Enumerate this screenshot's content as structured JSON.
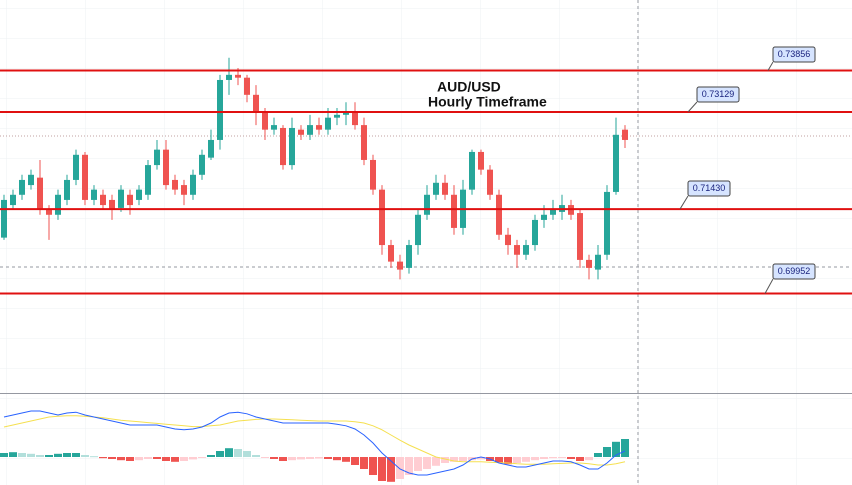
{
  "chart_data": {
    "type": "candlestick",
    "title": "AUD/USD",
    "subtitle": "Hourly Timeframe",
    "ylim": [
      0.6821,
      0.7509
    ],
    "up_color": "#26a69a",
    "down_color": "#ef5350",
    "level_color": "#e01010",
    "levels": [
      0.73856,
      0.73129,
      {
        "value": 0.7143,
        "label": "0.71430"
      },
      0.69952
    ],
    "open": [
      0.7093,
      0.715,
      0.7168,
      0.7185,
      0.7198,
      0.7142,
      0.7133,
      0.7159,
      0.7194,
      0.7238,
      0.7159,
      0.7168,
      0.7159,
      0.7145,
      0.7168,
      0.7159,
      0.7168,
      0.722,
      0.7247,
      0.7194,
      0.7185,
      0.7168,
      0.7203,
      0.7233,
      0.7264,
      0.7369,
      0.7378,
      0.7373,
      0.7343,
      0.7313,
      0.7282,
      0.7285,
      0.722,
      0.7282,
      0.7273,
      0.729,
      0.7282,
      0.7303,
      0.7308,
      0.7313,
      0.729,
      0.7229,
      0.7177,
      0.708,
      0.7051,
      0.704,
      0.708,
      0.7133,
      0.7168,
      0.7189,
      0.7168,
      0.711,
      0.7177,
      0.7243,
      0.7212,
      0.7168,
      0.7098,
      0.708,
      0.7063,
      0.708,
      0.7124,
      0.7133,
      0.7138,
      0.715,
      0.7136,
      0.7054,
      0.7037,
      0.7063,
      0.7173,
      0.7282
    ],
    "high": [
      0.7168,
      0.7177,
      0.7203,
      0.7212,
      0.7229,
      0.715,
      0.7177,
      0.7203,
      0.7247,
      0.7243,
      0.7185,
      0.7177,
      0.7168,
      0.7185,
      0.7177,
      0.7185,
      0.7229,
      0.7264,
      0.7264,
      0.7203,
      0.7194,
      0.7212,
      0.7247,
      0.7282,
      0.7378,
      0.7408,
      0.739,
      0.7378,
      0.736,
      0.732,
      0.7303,
      0.729,
      0.7303,
      0.729,
      0.7308,
      0.7303,
      0.732,
      0.732,
      0.733,
      0.733,
      0.7303,
      0.7238,
      0.7185,
      0.7089,
      0.7063,
      0.7089,
      0.7142,
      0.7185,
      0.7203,
      0.7203,
      0.7185,
      0.7194,
      0.7247,
      0.7247,
      0.722,
      0.7177,
      0.711,
      0.7089,
      0.7089,
      0.7133,
      0.715,
      0.7159,
      0.7168,
      0.7159,
      0.7142,
      0.7063,
      0.708,
      0.7185,
      0.7303,
      0.729
    ],
    "low": [
      0.7089,
      0.7142,
      0.7159,
      0.7177,
      0.7133,
      0.7089,
      0.7124,
      0.715,
      0.7185,
      0.715,
      0.715,
      0.7142,
      0.7124,
      0.7138,
      0.7133,
      0.715,
      0.7159,
      0.7212,
      0.7177,
      0.7168,
      0.715,
      0.7159,
      0.7194,
      0.7229,
      0.7247,
      0.7343,
      0.736,
      0.733,
      0.729,
      0.7264,
      0.7273,
      0.7212,
      0.7212,
      0.7264,
      0.7264,
      0.7273,
      0.7273,
      0.729,
      0.729,
      0.7282,
      0.722,
      0.7168,
      0.7063,
      0.704,
      0.702,
      0.703,
      0.7063,
      0.7124,
      0.7159,
      0.7159,
      0.7098,
      0.7098,
      0.7168,
      0.7203,
      0.7159,
      0.7089,
      0.7063,
      0.704,
      0.7054,
      0.707,
      0.711,
      0.7124,
      0.7124,
      0.7124,
      0.704,
      0.702,
      0.702,
      0.7054,
      0.7168,
      0.725
    ],
    "close": [
      0.7159,
      0.7168,
      0.7194,
      0.7203,
      0.7142,
      0.7133,
      0.7168,
      0.7194,
      0.7238,
      0.7159,
      0.7177,
      0.715,
      0.7142,
      0.7177,
      0.715,
      0.7177,
      0.722,
      0.7247,
      0.7185,
      0.7177,
      0.7168,
      0.7203,
      0.7238,
      0.7264,
      0.7369,
      0.7378,
      0.7373,
      0.7343,
      0.7313,
      0.7282,
      0.729,
      0.722,
      0.7285,
      0.7273,
      0.729,
      0.7282,
      0.7303,
      0.7308,
      0.7313,
      0.729,
      0.7229,
      0.7177,
      0.708,
      0.7051,
      0.7037,
      0.708,
      0.7133,
      0.7168,
      0.7189,
      0.7168,
      0.711,
      0.7177,
      0.7243,
      0.7212,
      0.7168,
      0.7098,
      0.708,
      0.7063,
      0.708,
      0.7124,
      0.7133,
      0.7142,
      0.715,
      0.7133,
      0.7054,
      0.704,
      0.7063,
      0.7173,
      0.7273,
      0.7264
    ],
    "macd": {
      "ylim": [
        -0.7,
        1.5
      ],
      "line_color": "#2962ff",
      "signal_color": "#f5e050",
      "histogram": [
        0.1,
        0.12,
        0.1,
        0.08,
        0.05,
        0.05,
        0.08,
        0.1,
        0.1,
        0.05,
        0.02,
        -0.03,
        -0.05,
        -0.08,
        -0.1,
        -0.08,
        -0.05,
        -0.05,
        -0.1,
        -0.12,
        -0.1,
        -0.06,
        -0.02,
        0.05,
        0.15,
        0.22,
        0.2,
        0.15,
        0.05,
        -0.02,
        -0.05,
        -0.1,
        -0.08,
        -0.06,
        -0.05,
        -0.04,
        -0.05,
        -0.08,
        -0.12,
        -0.2,
        -0.3,
        -0.45,
        -0.6,
        -0.62,
        -0.55,
        -0.45,
        -0.35,
        -0.3,
        -0.22,
        -0.15,
        -0.12,
        -0.1,
        -0.08,
        -0.06,
        -0.1,
        -0.15,
        -0.18,
        -0.15,
        -0.12,
        -0.08,
        -0.05,
        -0.03,
        -0.02,
        -0.05,
        -0.1,
        -0.08,
        0.1,
        0.25,
        0.38,
        0.45
      ],
      "macd_line": [
        1.0,
        1.05,
        1.1,
        1.15,
        1.15,
        1.1,
        1.05,
        1.1,
        1.12,
        1.05,
        1.0,
        0.95,
        0.9,
        0.85,
        0.8,
        0.8,
        0.8,
        0.8,
        0.75,
        0.7,
        0.68,
        0.7,
        0.75,
        0.85,
        1.0,
        1.1,
        1.12,
        1.08,
        1.0,
        0.95,
        0.9,
        0.85,
        0.85,
        0.85,
        0.85,
        0.85,
        0.85,
        0.82,
        0.78,
        0.7,
        0.55,
        0.35,
        0.1,
        -0.1,
        -0.3,
        -0.4,
        -0.45,
        -0.45,
        -0.4,
        -0.35,
        -0.3,
        -0.2,
        -0.05,
        0.0,
        -0.05,
        -0.15,
        -0.2,
        -0.25,
        -0.25,
        -0.2,
        -0.15,
        -0.1,
        -0.1,
        -0.12,
        -0.2,
        -0.3,
        -0.3,
        -0.15,
        0.05,
        0.15
      ],
      "signal_line": [
        0.75,
        0.8,
        0.85,
        0.9,
        0.95,
        1.0,
        1.02,
        1.03,
        1.03,
        1.02,
        1.0,
        0.98,
        0.95,
        0.92,
        0.9,
        0.88,
        0.86,
        0.84,
        0.82,
        0.8,
        0.78,
        0.76,
        0.76,
        0.78,
        0.8,
        0.85,
        0.9,
        0.92,
        0.94,
        0.95,
        0.95,
        0.94,
        0.93,
        0.92,
        0.91,
        0.9,
        0.9,
        0.9,
        0.9,
        0.88,
        0.85,
        0.78,
        0.68,
        0.55,
        0.42,
        0.3,
        0.2,
        0.1,
        0.0,
        -0.05,
        -0.1,
        -0.12,
        -0.12,
        -0.12,
        -0.13,
        -0.14,
        -0.15,
        -0.17,
        -0.18,
        -0.18,
        -0.18,
        -0.17,
        -0.16,
        -0.15,
        -0.15,
        -0.17,
        -0.2,
        -0.2,
        -0.17,
        -0.12
      ]
    }
  }
}
